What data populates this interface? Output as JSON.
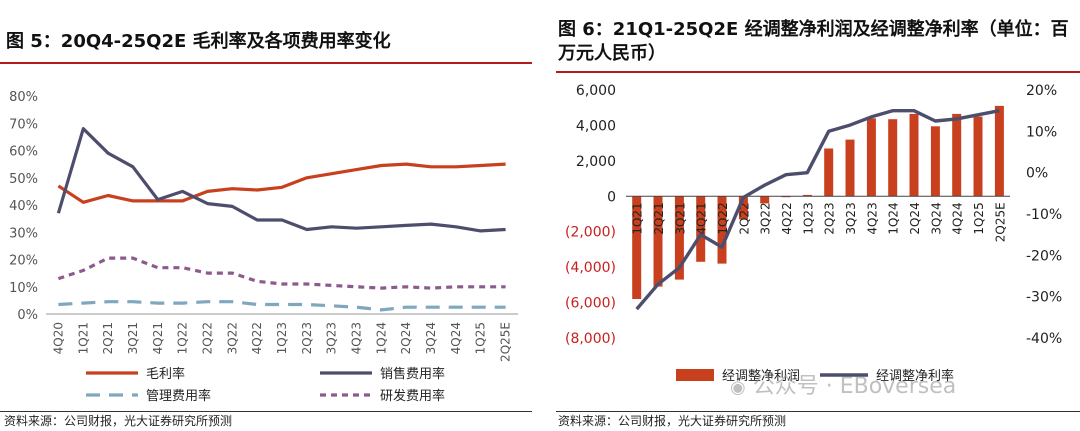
{
  "left_source": "资料来源：公司财报，光大证券研究所预测",
  "right_source": "资料来源：公司财报，光大证券研究所预测",
  "watermark_text": "公众号 · EBoversea",
  "icons": {
    "watermark": "wechat-icon"
  },
  "chart_data": [
    {
      "type": "line",
      "title": "图 5：20Q4-25Q2E 毛利率及各项费用率变化",
      "categories": [
        "4Q20",
        "1Q21",
        "2Q21",
        "3Q21",
        "4Q21",
        "1Q22",
        "2Q22",
        "3Q22",
        "4Q22",
        "1Q23",
        "2Q23",
        "3Q23",
        "4Q23",
        "1Q24",
        "2Q24",
        "3Q24",
        "4Q24",
        "1Q25",
        "2Q25E"
      ],
      "y_ticks": [
        "0%",
        "10%",
        "20%",
        "30%",
        "40%",
        "50%",
        "60%",
        "70%",
        "80%"
      ],
      "ylim": [
        0,
        80
      ],
      "series": [
        {
          "name": "毛利率",
          "color": "#c8401e",
          "dash": "",
          "values": [
            47,
            41,
            43.5,
            41.5,
            41.5,
            41.5,
            45,
            46,
            45.5,
            46.5,
            50,
            51.5,
            53,
            54.5,
            55,
            54,
            54,
            54.5,
            55
          ]
        },
        {
          "name": "销售费用率",
          "color": "#4d4d6e",
          "dash": "",
          "values": [
            37,
            68,
            59,
            54,
            42,
            45,
            40.5,
            39.5,
            34.5,
            34.5,
            31,
            32,
            31.5,
            32,
            32.5,
            33,
            32,
            30.5,
            31
          ]
        },
        {
          "name": "管理费用率",
          "color": "#7fa7bd",
          "dash": "14 9",
          "values": [
            3.5,
            4,
            4.5,
            4.5,
            4,
            4,
            4.5,
            4.5,
            3.5,
            3.5,
            3.5,
            3,
            2.5,
            1.5,
            2.5,
            2.5,
            2.5,
            2.5,
            2.5
          ]
        },
        {
          "name": "研发费用率",
          "color": "#8c5a8c",
          "dash": "6 5",
          "values": [
            13,
            16,
            20.5,
            20.5,
            17,
            17,
            15,
            15,
            12,
            11,
            11,
            10.5,
            10,
            9.5,
            10,
            9.5,
            10,
            10,
            10
          ]
        }
      ]
    },
    {
      "type": "bar",
      "title": "图 6：21Q1-25Q2E 经调整净利润及经调整净利率（单位：百万元人民币）",
      "categories": [
        "1Q21",
        "2Q21",
        "3Q21",
        "4Q21",
        "1Q22",
        "2Q22",
        "3Q22",
        "4Q22",
        "1Q23",
        "2Q23",
        "3Q23",
        "4Q23",
        "1Q24",
        "2Q24",
        "3Q24",
        "4Q24",
        "1Q25",
        "2Q25E"
      ],
      "y_left_ticks": [
        "6,000",
        "4,000",
        "2,000",
        "0",
        "(2,000)",
        "(4,000)",
        "(6,000)",
        "(8,000)"
      ],
      "y_right_ticks": [
        "20%",
        "10%",
        "0%",
        "-10%",
        "-20%",
        "-30%",
        "-40%"
      ],
      "y_left_range": [
        -8000,
        6000
      ],
      "y_right_range": [
        -40,
        20
      ],
      "series": [
        {
          "name": "经调整净利润",
          "kind": "bar",
          "color": "#c8401e",
          "axis": "left",
          "values": [
            -5800,
            -5100,
            -4700,
            -3700,
            -3800,
            -1300,
            -400,
            -50,
            80,
            2700,
            3200,
            4400,
            4350,
            4650,
            3950,
            4650,
            4500,
            5100
          ]
        },
        {
          "name": "经调整净利率",
          "kind": "line",
          "color": "#4d4d6e",
          "axis": "right",
          "values": [
            -33,
            -27,
            -23,
            -15,
            -18,
            -6,
            -3,
            -0.5,
            0,
            10,
            11.5,
            13.5,
            15,
            15,
            12.5,
            13,
            14,
            15
          ]
        }
      ]
    }
  ]
}
